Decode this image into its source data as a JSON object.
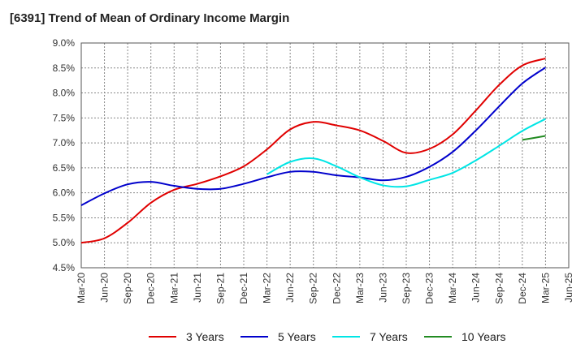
{
  "chart_data": {
    "type": "line",
    "title": "[6391]  Trend of Mean of Ordinary Income Margin",
    "xlabel": "",
    "ylabel": "",
    "x_ticks": [
      "Mar-20",
      "Jun-20",
      "Sep-20",
      "Dec-20",
      "Mar-21",
      "Jun-21",
      "Sep-21",
      "Dec-21",
      "Mar-22",
      "Jun-22",
      "Sep-22",
      "Dec-22",
      "Mar-23",
      "Jun-23",
      "Sep-23",
      "Dec-23",
      "Mar-24",
      "Jun-24",
      "Sep-24",
      "Dec-24",
      "Mar-25",
      "Jun-25"
    ],
    "y_ticks": [
      "4.5%",
      "5.0%",
      "5.5%",
      "6.0%",
      "6.5%",
      "7.0%",
      "7.5%",
      "8.0%",
      "8.5%",
      "9.0%"
    ],
    "ylim": [
      4.5,
      9.0
    ],
    "grid": true,
    "legend_position": "bottom",
    "series": [
      {
        "name": "3 Years",
        "color": "#e00000",
        "x": [
          "Mar-20",
          "Jun-20",
          "Sep-20",
          "Dec-20",
          "Mar-21",
          "Jun-21",
          "Sep-21",
          "Dec-21",
          "Mar-22",
          "Jun-22",
          "Sep-22",
          "Dec-22",
          "Mar-23",
          "Jun-23",
          "Sep-23",
          "Dec-23",
          "Mar-24",
          "Jun-24",
          "Sep-24",
          "Dec-24",
          "Mar-25"
        ],
        "values": [
          5.0,
          5.09,
          5.4,
          5.8,
          6.06,
          6.18,
          6.33,
          6.53,
          6.87,
          7.27,
          7.42,
          7.35,
          7.25,
          7.04,
          6.8,
          6.88,
          7.17,
          7.65,
          8.16,
          8.55,
          8.69
        ]
      },
      {
        "name": "5 Years",
        "color": "#0000cc",
        "x": [
          "Mar-20",
          "Jun-20",
          "Sep-20",
          "Dec-20",
          "Mar-21",
          "Jun-21",
          "Sep-21",
          "Dec-21",
          "Mar-22",
          "Jun-22",
          "Sep-22",
          "Dec-22",
          "Mar-23",
          "Jun-23",
          "Sep-23",
          "Dec-23",
          "Mar-24",
          "Jun-24",
          "Sep-24",
          "Dec-24",
          "Mar-25"
        ],
        "values": [
          5.75,
          5.99,
          6.17,
          6.22,
          6.14,
          6.08,
          6.08,
          6.18,
          6.31,
          6.42,
          6.42,
          6.35,
          6.31,
          6.25,
          6.32,
          6.52,
          6.82,
          7.25,
          7.73,
          8.19,
          8.51
        ]
      },
      {
        "name": "7 Years",
        "color": "#00e5e5",
        "x": [
          "Mar-22",
          "Jun-22",
          "Sep-22",
          "Dec-22",
          "Mar-23",
          "Jun-23",
          "Sep-23",
          "Dec-23",
          "Mar-24",
          "Jun-24",
          "Sep-24",
          "Dec-24",
          "Mar-25"
        ],
        "values": [
          6.37,
          6.62,
          6.69,
          6.53,
          6.31,
          6.15,
          6.13,
          6.26,
          6.4,
          6.65,
          6.94,
          7.24,
          7.48
        ]
      },
      {
        "name": "10 Years",
        "color": "#228b22",
        "x": [
          "Dec-24",
          "Mar-25"
        ],
        "values": [
          7.06,
          7.14
        ]
      }
    ]
  }
}
